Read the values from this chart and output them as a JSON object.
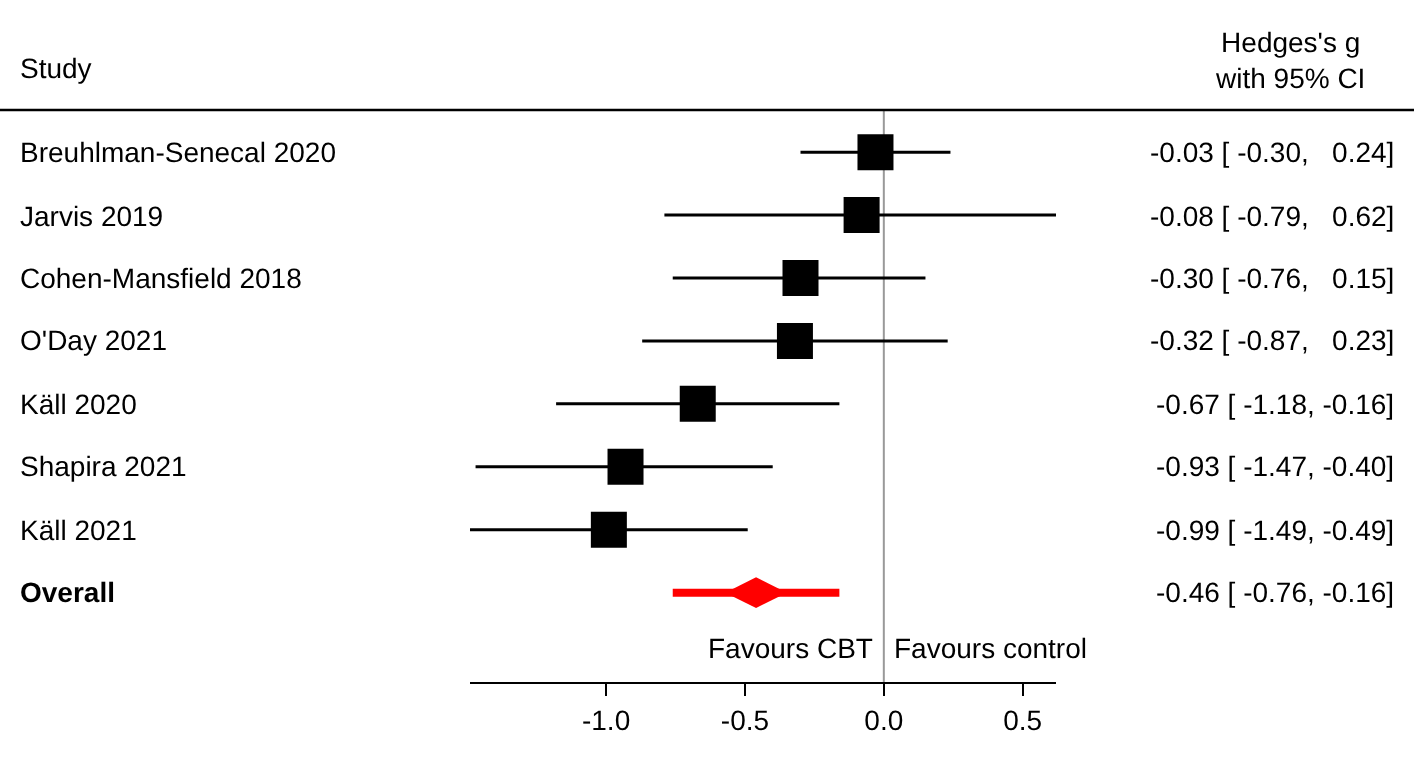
{
  "chart_data": {
    "type": "scatter",
    "orientation": "horizontal",
    "ylabel": "Study",
    "categories": [
      "Breuhlman-Senecal 2020",
      "Jarvis 2019",
      "Cohen-Mansfield 2018",
      "O'Day 2021",
      "Käll 2020",
      "Shapira 2021",
      "Käll 2021",
      "Overall"
    ],
    "series": [
      {
        "color": "#000000",
        "marker": "square",
        "values": [
          -0.03,
          -0.08,
          -0.3,
          -0.32,
          -0.67,
          -0.93,
          -0.99,
          null
        ],
        "errors": [
          [
            -0.3,
            0.24
          ],
          [
            -0.79,
            0.62
          ],
          [
            -0.76,
            0.15
          ],
          [
            -0.87,
            0.23
          ],
          [
            -1.18,
            -0.16
          ],
          [
            -1.47,
            -0.4
          ],
          [
            -1.49,
            -0.49
          ],
          null
        ]
      },
      {
        "color": "#ff0000",
        "marker": "diamond",
        "values": [
          null,
          null,
          null,
          null,
          null,
          null,
          null,
          -0.46
        ],
        "errors": [
          null,
          null,
          null,
          null,
          null,
          null,
          null,
          [
            -0.76,
            -0.16
          ]
        ]
      }
    ],
    "value_labels": [
      "-0.03 [ -0.30,   0.24]",
      "-0.08 [ -0.79,   0.62]",
      "-0.30 [ -0.76,   0.15]",
      "-0.32 [ -0.87,   0.23]",
      "-0.67 [ -1.18, -0.16]",
      "-0.93 [ -1.47, -0.40]",
      "-0.99 [ -1.49, -0.49]",
      "-0.46 [ -0.76, -0.16]"
    ],
    "annotations": [
      "Hedges's g\nwith 95% CI",
      "Favours CBT",
      "Favours control"
    ],
    "ref_lines": [
      {
        "axis": "x",
        "value": 0,
        "color": "#999999"
      }
    ],
    "xlim": [
      -1.49,
      0.62
    ],
    "xticks": [
      {
        "value": -1,
        "label": "-1.0"
      },
      {
        "value": -0.5,
        "label": "-0.5"
      },
      {
        "value": 0,
        "label": "0.0"
      },
      {
        "value": 0.5,
        "label": "0.5"
      }
    ],
    "grid": false
  }
}
